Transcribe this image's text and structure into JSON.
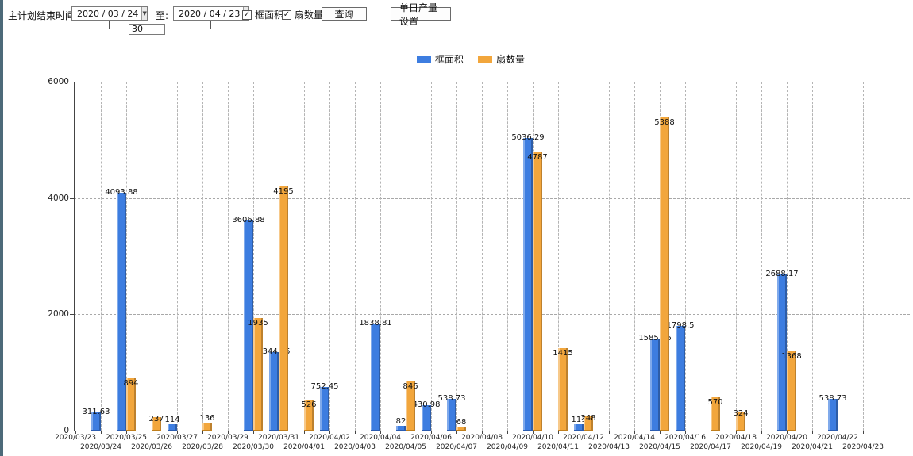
{
  "window": {
    "left_strip_color": "#4d6a79"
  },
  "toolbar": {
    "plan_end_label": "主计划结束时间:",
    "date_from": "2020 / 03 / 24",
    "to_label": "至:",
    "date_to": "2020 / 04 / 23",
    "day_span": "30",
    "checkbox_frame_area": "框面积",
    "checkbox_fan_count": "扇数量",
    "query_button": "查询",
    "daily_output_button": "单日产量设置"
  },
  "chart_data": {
    "type": "bar",
    "title": "",
    "xlabel": "",
    "ylabel": "",
    "categories": [
      "2020/03/23",
      "2020/03/24",
      "2020/03/25",
      "2020/03/26",
      "2020/03/27",
      "2020/03/28",
      "2020/03/29",
      "2020/03/30",
      "2020/03/31",
      "2020/04/01",
      "2020/04/02",
      "2020/04/03",
      "2020/04/04",
      "2020/04/05",
      "2020/04/06",
      "2020/04/07",
      "2020/04/08",
      "2020/04/09",
      "2020/04/10",
      "2020/04/11",
      "2020/04/12",
      "2020/04/13",
      "2020/04/14",
      "2020/04/15",
      "2020/04/16",
      "2020/04/17",
      "2020/04/18",
      "2020/04/19",
      "2020/04/20",
      "2020/04/21",
      "2020/04/22",
      "2020/04/23"
    ],
    "series": [
      {
        "name": "框面积",
        "color": "#3d7de0",
        "edge": "#2b5cb0",
        "values": [
          null,
          311.63,
          4093.88,
          null,
          114,
          null,
          null,
          3606.88,
          1344.95,
          null,
          752.45,
          null,
          1838.81,
          82,
          430.98,
          538.73,
          null,
          null,
          5036.29,
          null,
          111,
          null,
          null,
          1585.96,
          1798.5,
          null,
          null,
          null,
          2688.17,
          null,
          538.73,
          null
        ]
      },
      {
        "name": "扇数量",
        "color": "#f2a63c",
        "edge": "#c07f1d",
        "values": [
          null,
          null,
          894,
          237,
          null,
          136,
          null,
          1935,
          4195,
          526,
          null,
          null,
          null,
          846,
          null,
          68,
          null,
          null,
          4787,
          1415,
          248,
          null,
          null,
          5388,
          null,
          570,
          324,
          null,
          1368,
          null,
          null,
          null
        ]
      }
    ],
    "ylim": [
      0,
      6000
    ],
    "yticks": [
      0,
      2000,
      4000,
      6000
    ],
    "grid": true,
    "legend_position": "top"
  }
}
